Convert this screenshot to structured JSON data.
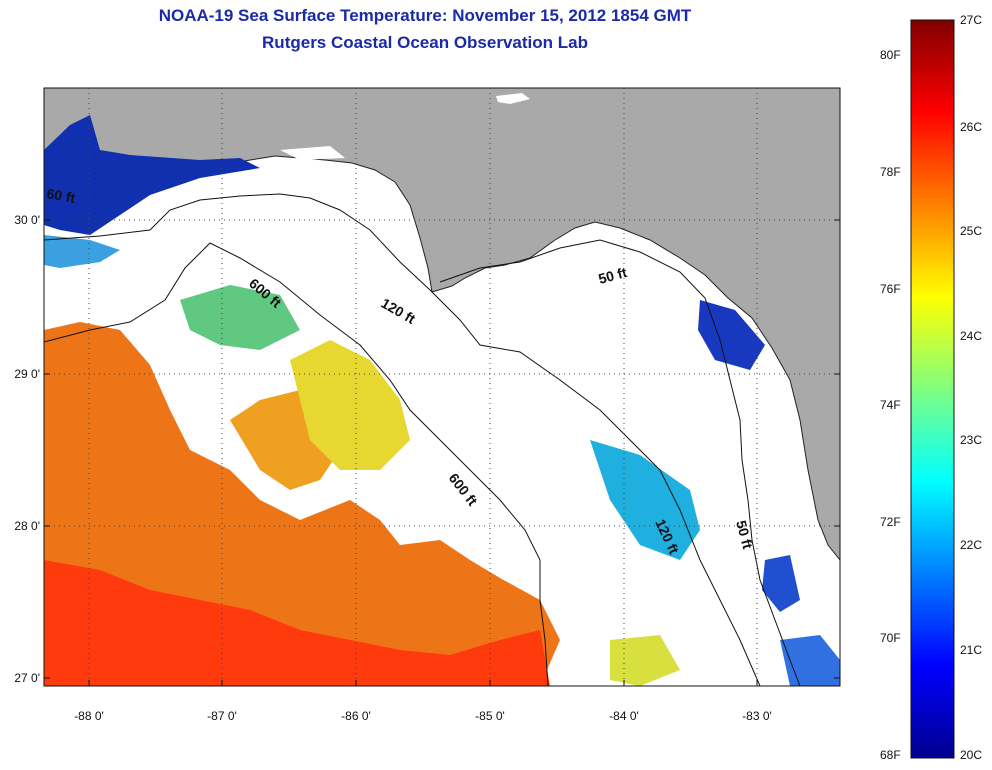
{
  "title": {
    "line1": "NOAA-19 Sea Surface Temperature:  November 15, 2012 1854 GMT",
    "line2": "Rutgers Coastal Ocean Observation Lab"
  },
  "map": {
    "lat_labels": [
      "30 0'",
      "29 0'",
      "28 0'",
      "27 0'"
    ],
    "lon_labels": [
      "-88 0'",
      "-87 0'",
      "-86 0'",
      "-85 0'",
      "-84 0'",
      "-83 0'"
    ],
    "contour_labels": {
      "c600a": "600 ft",
      "c600b": "600 ft",
      "c120a": "120 ft",
      "c120b": "120 ft",
      "c50a": "50 ft",
      "c50b": "50 ft",
      "c60": "60 ft"
    },
    "colors": {
      "land": "#a9a9a9",
      "ocean": "#ffffff",
      "title": "#1a2aa8"
    }
  },
  "colorbar": {
    "fahrenheit": [
      "80F",
      "78F",
      "76F",
      "74F",
      "72F",
      "70F",
      "68F"
    ],
    "celsius": [
      "27C",
      "26C",
      "25C",
      "24C",
      "23C",
      "22C",
      "21C",
      "20C"
    ]
  }
}
